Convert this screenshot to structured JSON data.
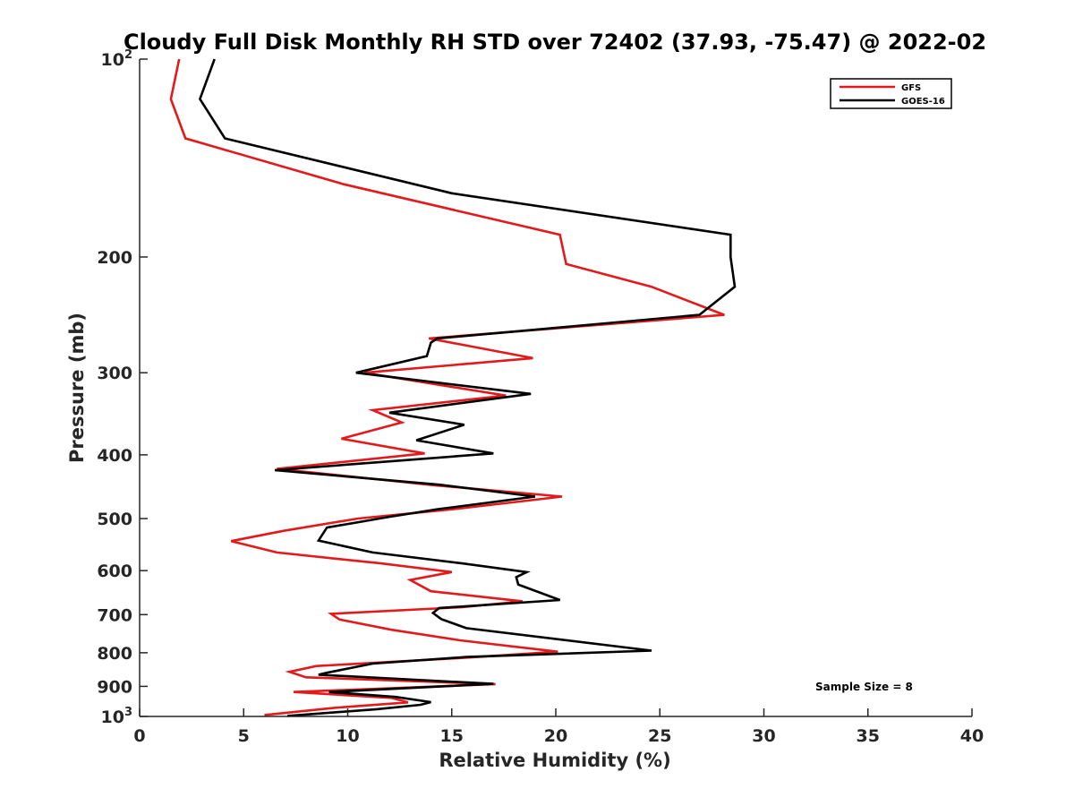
{
  "chart_data": {
    "type": "line",
    "title": "Cloudy Full Disk Monthly RH STD over 72402 (37.93, -75.47) @ 2022-02",
    "xlabel": "Relative Humidity (%)",
    "ylabel": "Pressure (mb)",
    "xlim": [
      0,
      40
    ],
    "ylim": [
      100,
      1000
    ],
    "yscale": "log",
    "yreversed": true,
    "xticks": [
      "0",
      "5",
      "10",
      "15",
      "20",
      "25",
      "30",
      "35",
      "40"
    ],
    "yticks": [
      {
        "value": 100,
        "base": "10",
        "exp": "2"
      },
      {
        "value": 200,
        "base": "200",
        "exp": ""
      },
      {
        "value": 300,
        "base": "300",
        "exp": ""
      },
      {
        "value": 400,
        "base": "400",
        "exp": ""
      },
      {
        "value": 500,
        "base": "500",
        "exp": ""
      },
      {
        "value": 600,
        "base": "600",
        "exp": ""
      },
      {
        "value": 700,
        "base": "700",
        "exp": ""
      },
      {
        "value": 800,
        "base": "800",
        "exp": ""
      },
      {
        "value": 900,
        "base": "900",
        "exp": ""
      },
      {
        "value": 1000,
        "base": "10",
        "exp": "3"
      }
    ],
    "legend_position": "top-right",
    "annotation": "Sample Size = 8",
    "series": [
      {
        "name": "GFS",
        "color": "#e31a1c",
        "points": [
          [
            1.9,
            100
          ],
          [
            1.5,
            115
          ],
          [
            2.2,
            132
          ],
          [
            9.8,
            155
          ],
          [
            20.2,
            185
          ],
          [
            20.5,
            205
          ],
          [
            24.6,
            222
          ],
          [
            28.1,
            245
          ],
          [
            13.9,
            266
          ],
          [
            18.9,
            285
          ],
          [
            10.8,
            300
          ],
          [
            17.6,
            325
          ],
          [
            11.2,
            342
          ],
          [
            12.6,
            357
          ],
          [
            9.7,
            378
          ],
          [
            13.7,
            398
          ],
          [
            6.6,
            420
          ],
          [
            14.2,
            445
          ],
          [
            20.3,
            463
          ],
          [
            15.3,
            483
          ],
          [
            10.5,
            500
          ],
          [
            6.9,
            522
          ],
          [
            4.4,
            541
          ],
          [
            6.6,
            563
          ],
          [
            11.6,
            585
          ],
          [
            15.0,
            603
          ],
          [
            13.0,
            620
          ],
          [
            14.0,
            645
          ],
          [
            18.4,
            668
          ],
          [
            15.5,
            682
          ],
          [
            9.2,
            698
          ],
          [
            9.6,
            712
          ],
          [
            12.1,
            738
          ],
          [
            15.4,
            766
          ],
          [
            20.1,
            797
          ],
          [
            15.4,
            815
          ],
          [
            8.5,
            838
          ],
          [
            7.2,
            855
          ],
          [
            8.0,
            872
          ],
          [
            17.1,
            893
          ],
          [
            7.4,
            918
          ],
          [
            12.1,
            937
          ],
          [
            12.9,
            952
          ],
          [
            9.4,
            970
          ],
          [
            6.0,
            995
          ]
        ]
      },
      {
        "name": "GOES-16",
        "color": "#000000",
        "points": [
          [
            3.6,
            100
          ],
          [
            2.9,
            115
          ],
          [
            4.1,
            132
          ],
          [
            15.0,
            160
          ],
          [
            28.4,
            185
          ],
          [
            28.4,
            200
          ],
          [
            28.6,
            222
          ],
          [
            26.9,
            245
          ],
          [
            14.3,
            266
          ],
          [
            14.0,
            270
          ],
          [
            13.8,
            283
          ],
          [
            10.4,
            300
          ],
          [
            18.8,
            323
          ],
          [
            12.0,
            345
          ],
          [
            15.6,
            360
          ],
          [
            13.3,
            380
          ],
          [
            17.0,
            398
          ],
          [
            6.5,
            422
          ],
          [
            14.4,
            444
          ],
          [
            19.0,
            463
          ],
          [
            14.3,
            484
          ],
          [
            12.0,
            497
          ],
          [
            9.0,
            516
          ],
          [
            8.6,
            540
          ],
          [
            11.2,
            563
          ],
          [
            15.5,
            585
          ],
          [
            18.6,
            603
          ],
          [
            18.1,
            614
          ],
          [
            18.2,
            630
          ],
          [
            20.2,
            665
          ],
          [
            14.4,
            684
          ],
          [
            14.1,
            696
          ],
          [
            14.5,
            711
          ],
          [
            15.7,
            734
          ],
          [
            24.6,
            794
          ],
          [
            15.7,
            812
          ],
          [
            11.2,
            831
          ],
          [
            9.0,
            858
          ],
          [
            8.6,
            864
          ],
          [
            17.0,
            892
          ],
          [
            9.1,
            918
          ],
          [
            12.3,
            934
          ],
          [
            14.0,
            951
          ],
          [
            13.5,
            960
          ],
          [
            11.4,
            975
          ],
          [
            7.1,
            998
          ]
        ]
      }
    ]
  }
}
